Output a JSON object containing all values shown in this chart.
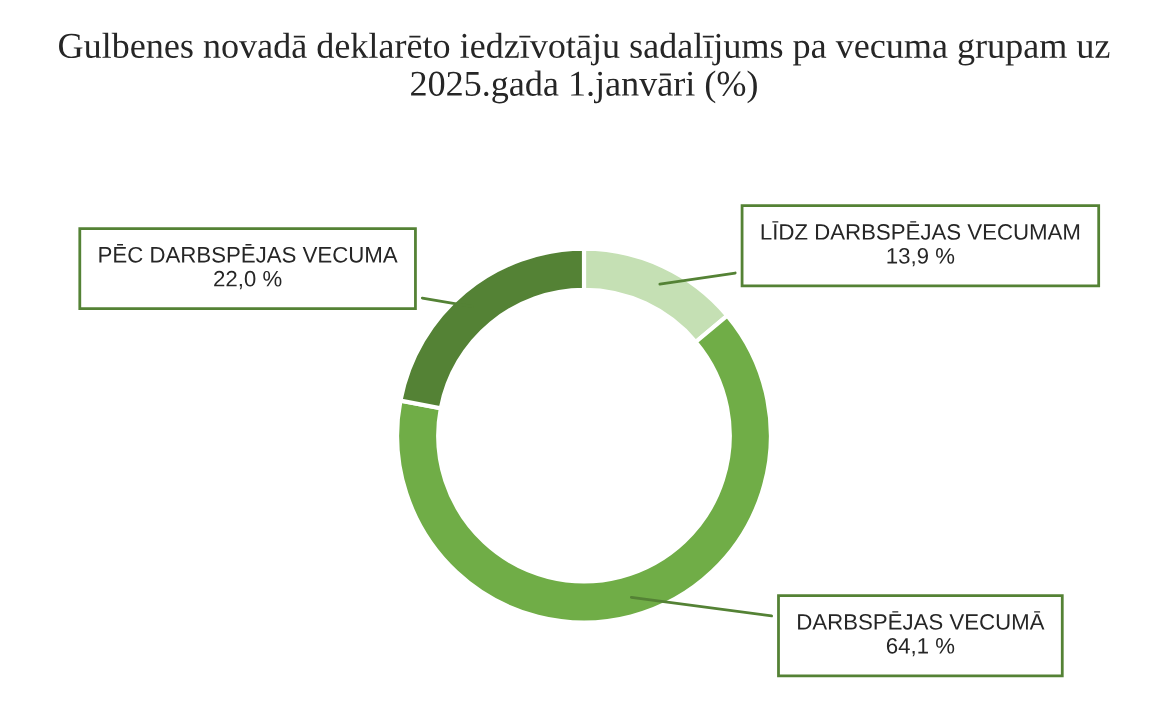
{
  "chart_data": {
    "type": "donut",
    "title": "Gulbenes novadā deklarēto iedzīvotāju sadalījums pa vecuma grupam uz 2025.gada 1.janvāri (%)",
    "categories": [
      "LĪDZ DARBSPĒJAS VECUMAM",
      "DARBSPĒJAS VECUMĀ",
      "PĒC DARBSPĒJAS VECUMA"
    ],
    "values": [
      13.9,
      64.1,
      22.0
    ],
    "value_labels": [
      "13,9 %",
      "64,1 %",
      "22,0 %"
    ],
    "colors": [
      "#c5e0b4",
      "#70ad47",
      "#548235"
    ],
    "legend": false
  }
}
